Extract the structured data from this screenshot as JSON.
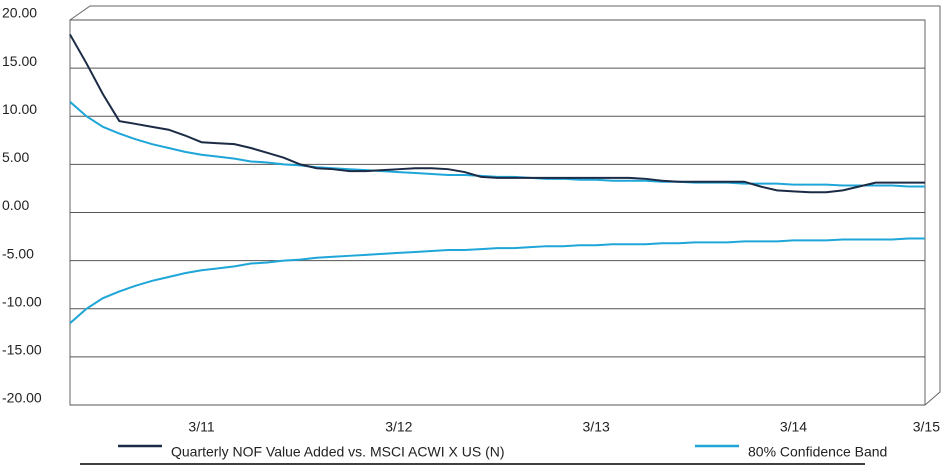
{
  "chart_data": {
    "type": "line",
    "categories": [
      null,
      null,
      null,
      null,
      null,
      null,
      null,
      null,
      "3/11",
      null,
      null,
      null,
      null,
      null,
      null,
      null,
      null,
      null,
      null,
      null,
      "3/12",
      null,
      null,
      null,
      null,
      null,
      null,
      null,
      null,
      null,
      null,
      null,
      "3/13",
      null,
      null,
      null,
      null,
      null,
      null,
      null,
      null,
      null,
      null,
      null,
      "3/14",
      null,
      null,
      null,
      null,
      null,
      null,
      null,
      "3/15"
    ],
    "series": [
      {
        "name": "Quarterly NOF Value Added vs. MSCI ACWI X US (N)",
        "color": "#1c2b45",
        "values": [
          18.5,
          15.5,
          12.3,
          9.5,
          9.2,
          8.9,
          8.6,
          8.0,
          7.3,
          7.2,
          7.1,
          6.7,
          6.2,
          5.7,
          5.0,
          4.6,
          4.5,
          4.3,
          4.3,
          4.4,
          4.5,
          4.6,
          4.6,
          4.5,
          4.2,
          3.7,
          3.6,
          3.6,
          3.6,
          3.6,
          3.6,
          3.6,
          3.6,
          3.6,
          3.6,
          3.5,
          3.3,
          3.2,
          3.2,
          3.2,
          3.2,
          3.2,
          2.7,
          2.3,
          2.2,
          2.1,
          2.1,
          2.3,
          2.7,
          3.1,
          3.1,
          3.1,
          3.1
        ]
      },
      {
        "name": "80% Confidence Band",
        "color": "#1fa6d8",
        "values": [
          11.5,
          10.0,
          8.9,
          8.2,
          7.6,
          7.1,
          6.7,
          6.3,
          6.0,
          5.8,
          5.6,
          5.3,
          5.2,
          5.0,
          4.9,
          4.7,
          4.6,
          4.5,
          4.4,
          4.3,
          4.2,
          4.1,
          4.0,
          3.9,
          3.9,
          3.8,
          3.7,
          3.7,
          3.6,
          3.5,
          3.5,
          3.4,
          3.4,
          3.3,
          3.3,
          3.3,
          3.2,
          3.2,
          3.1,
          3.1,
          3.1,
          3.0,
          3.0,
          3.0,
          2.9,
          2.9,
          2.9,
          2.8,
          2.8,
          2.8,
          2.8,
          2.7,
          2.7
        ],
        "lower_values": [
          -11.5,
          -10.0,
          -8.9,
          -8.2,
          -7.6,
          -7.1,
          -6.7,
          -6.3,
          -6.0,
          -5.8,
          -5.6,
          -5.3,
          -5.2,
          -5.0,
          -4.9,
          -4.7,
          -4.6,
          -4.5,
          -4.4,
          -4.3,
          -4.2,
          -4.1,
          -4.0,
          -3.9,
          -3.9,
          -3.8,
          -3.7,
          -3.7,
          -3.6,
          -3.5,
          -3.5,
          -3.4,
          -3.4,
          -3.3,
          -3.3,
          -3.3,
          -3.2,
          -3.2,
          -3.1,
          -3.1,
          -3.1,
          -3.0,
          -3.0,
          -3.0,
          -2.9,
          -2.9,
          -2.9,
          -2.8,
          -2.8,
          -2.8,
          -2.8,
          -2.7,
          -2.7
        ]
      }
    ],
    "ylim": [
      -20,
      20
    ],
    "yticks": [
      {
        "value": 20,
        "label": "20.00"
      },
      {
        "value": 15,
        "label": "15.00"
      },
      {
        "value": 10,
        "label": "10.00"
      },
      {
        "value": 5,
        "label": "5.00"
      },
      {
        "value": 0,
        "label": "0.00"
      },
      {
        "value": -5,
        "label": "-5.00"
      },
      {
        "value": -10,
        "label": "-10.00"
      },
      {
        "value": -15,
        "label": "-15.00"
      },
      {
        "value": -20,
        "label": "-20.00"
      }
    ],
    "grid": true
  }
}
